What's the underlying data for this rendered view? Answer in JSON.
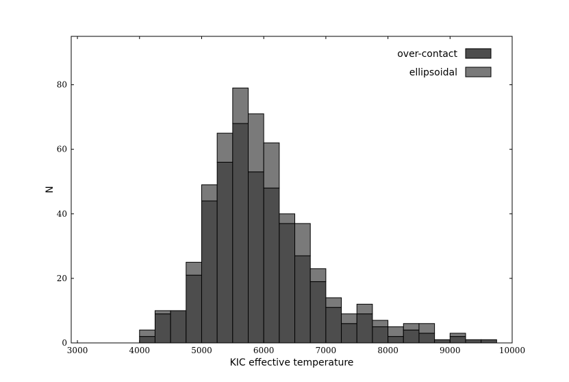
{
  "chart_data": {
    "type": "bar",
    "stacked": true,
    "xlabel": "KIC effective temperature",
    "ylabel": "N",
    "xlim": [
      2900,
      10000
    ],
    "ylim": [
      0,
      95
    ],
    "xticks": [
      3000,
      4000,
      5000,
      6000,
      7000,
      8000,
      9000,
      10000
    ],
    "yticks": [
      0,
      20,
      40,
      60,
      80
    ],
    "bin_width": 250,
    "bin_starts": [
      3500,
      3750,
      4000,
      4250,
      4500,
      4750,
      5000,
      5250,
      5500,
      5750,
      6000,
      6250,
      6500,
      6750,
      7000,
      7250,
      7500,
      7750,
      8000,
      8250,
      8500,
      8750,
      9000,
      9250,
      9500
    ],
    "series": [
      {
        "name": "over-contact",
        "color": "#4d4d4d",
        "values": [
          0,
          0,
          2,
          9,
          10,
          21,
          44,
          56,
          68,
          53,
          48,
          37,
          27,
          19,
          11,
          6,
          9,
          5,
          2,
          4,
          3,
          1,
          2,
          1,
          1
        ]
      },
      {
        "name": "ellipsoidal",
        "color": "#7a7a7a",
        "values": [
          0,
          0,
          2,
          1,
          0,
          4,
          5,
          9,
          11,
          18,
          14,
          3,
          10,
          4,
          3,
          3,
          3,
          2,
          3,
          2,
          3,
          0,
          1,
          0,
          0
        ]
      }
    ],
    "legend_position": "top-right",
    "grid": false
  }
}
